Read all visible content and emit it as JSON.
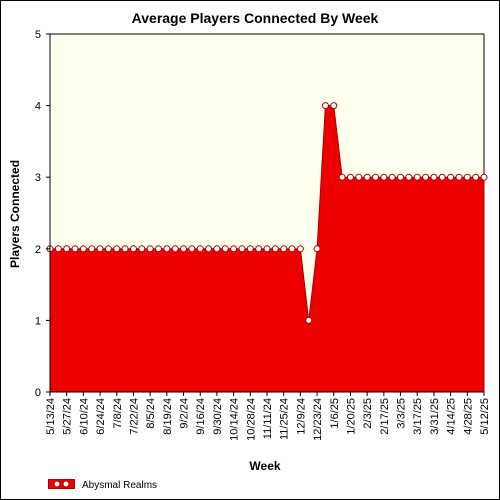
{
  "chart_data": {
    "type": "area",
    "title": "Average Players Connected By Week",
    "xlabel": "Week",
    "ylabel": "Players Connected",
    "ylim": [
      0,
      5
    ],
    "yticks": [
      0,
      1,
      2,
      3,
      4,
      5
    ],
    "grid": false,
    "legend_position": "bottom-left",
    "colors": {
      "area_fill": "#ee0000",
      "area_edge": "#aa0000",
      "marker_fill": "#ffffff",
      "plot_background": "#ffffee",
      "frame": "#000000"
    },
    "x_tick_labels": [
      "5/13/24",
      "5/27/24",
      "6/10/24",
      "6/24/24",
      "7/8/24",
      "7/22/24",
      "8/5/24",
      "8/19/24",
      "9/2/24",
      "9/16/24",
      "9/30/24",
      "10/14/24",
      "10/28/24",
      "11/11/24",
      "11/25/24",
      "12/9/24",
      "12/23/24",
      "1/6/25",
      "1/20/25",
      "2/3/25",
      "2/17/25",
      "3/3/25",
      "3/17/25",
      "3/31/25",
      "4/14/25",
      "4/28/25",
      "5/12/25"
    ],
    "x": [
      "5/13/24",
      "5/20/24",
      "5/27/24",
      "6/3/24",
      "6/10/24",
      "6/17/24",
      "6/24/24",
      "7/1/24",
      "7/8/24",
      "7/15/24",
      "7/22/24",
      "7/29/24",
      "8/5/24",
      "8/12/24",
      "8/19/24",
      "8/26/24",
      "9/2/24",
      "9/9/24",
      "9/16/24",
      "9/23/24",
      "9/30/24",
      "10/7/24",
      "10/14/24",
      "10/21/24",
      "10/28/24",
      "11/4/24",
      "11/11/24",
      "11/18/24",
      "11/25/24",
      "12/2/24",
      "12/9/24",
      "12/16/24",
      "12/23/24",
      "12/30/24",
      "1/6/25",
      "1/13/25",
      "1/20/25",
      "1/27/25",
      "2/3/25",
      "2/10/25",
      "2/17/25",
      "2/24/25",
      "3/3/25",
      "3/10/25",
      "3/17/25",
      "3/24/25",
      "3/31/25",
      "4/7/25",
      "4/14/25",
      "4/21/25",
      "4/28/25",
      "5/5/25",
      "5/12/25"
    ],
    "series": [
      {
        "name": "Abysmal Realms",
        "values": [
          2,
          2,
          2,
          2,
          2,
          2,
          2,
          2,
          2,
          2,
          2,
          2,
          2,
          2,
          2,
          2,
          2,
          2,
          2,
          2,
          2,
          2,
          2,
          2,
          2,
          2,
          2,
          2,
          2,
          2,
          2,
          1,
          2,
          4,
          4,
          3,
          3,
          3,
          3,
          3,
          3,
          3,
          3,
          3,
          3,
          3,
          3,
          3,
          3,
          3,
          3,
          3,
          3
        ]
      }
    ]
  }
}
